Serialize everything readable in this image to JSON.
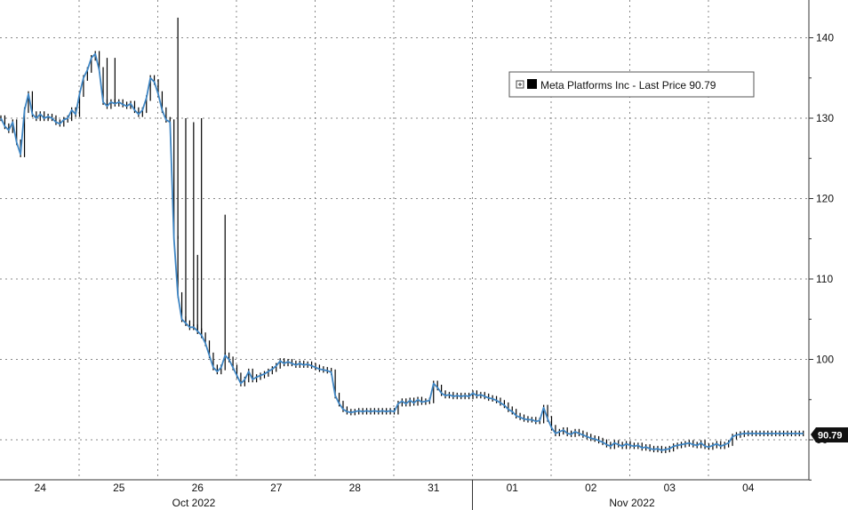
{
  "chart_data": {
    "type": "line",
    "title": "",
    "xlabel": "",
    "ylabel": "",
    "ylim": [
      85,
      142
    ],
    "y_ticks": [
      90,
      100,
      110,
      120,
      130,
      140
    ],
    "y_tick_labels": [
      "90",
      "100",
      "110",
      "120",
      "130",
      "140"
    ],
    "x_ticks": [
      "24",
      "25",
      "26",
      "27",
      "28",
      "31",
      "01",
      "02",
      "03",
      "04"
    ],
    "periods": [
      "Oct 2022",
      "Nov 2022"
    ],
    "grid": true,
    "legend_position": "top-right",
    "legend": {
      "label": "Meta Platforms Inc - Last Price 90.79",
      "expand_icon": "plus-box-icon"
    },
    "last_value_label": "90.79",
    "colors": {
      "line": "#3f86c4",
      "bars": "#000000",
      "grid": "#888888",
      "tag_bg": "#111111"
    },
    "series": [
      {
        "name": "Meta Platforms Inc - Last Price",
        "x": [
          0.0,
          0.05,
          0.1,
          0.15,
          0.2,
          0.25,
          0.3,
          0.35,
          0.4,
          0.45,
          0.5,
          0.55,
          0.6,
          0.65,
          0.7,
          0.75,
          0.8,
          0.85,
          0.9,
          0.95,
          1.0,
          1.05,
          1.1,
          1.15,
          1.2,
          1.25,
          1.3,
          1.35,
          1.4,
          1.45,
          1.5,
          1.55,
          1.6,
          1.65,
          1.7,
          1.75,
          1.8,
          1.85,
          1.9,
          1.95,
          2.0,
          2.05,
          2.1,
          2.15,
          2.2,
          2.25,
          2.3,
          2.35,
          2.4,
          2.45,
          2.5,
          2.55,
          2.6,
          2.65,
          2.7,
          2.75,
          2.8,
          2.85,
          2.9,
          2.95,
          3.0,
          3.05,
          3.1,
          3.15,
          3.2,
          3.25,
          3.3,
          3.35,
          3.4,
          3.45,
          3.5,
          3.55,
          3.6,
          3.65,
          3.7,
          3.75,
          3.8,
          3.85,
          3.9,
          3.95,
          4.0,
          4.05,
          4.1,
          4.15,
          4.2,
          4.25,
          4.3,
          4.35,
          4.4,
          4.45,
          4.5,
          4.55,
          4.6,
          4.65,
          4.7,
          4.75,
          4.8,
          4.85,
          4.9,
          4.95,
          5.0,
          5.05,
          5.1,
          5.15,
          5.2,
          5.25,
          5.3,
          5.35,
          5.4,
          5.45,
          5.5,
          5.55,
          5.6,
          5.65,
          5.7,
          5.75,
          5.8,
          5.85,
          5.9,
          5.95,
          6.0,
          6.05,
          6.1,
          6.15,
          6.2,
          6.25,
          6.3,
          6.35,
          6.4,
          6.45,
          6.5,
          6.55,
          6.6,
          6.65,
          6.7,
          6.75,
          6.8,
          6.85,
          6.9,
          6.95,
          7.0,
          7.05,
          7.1,
          7.15,
          7.2,
          7.25,
          7.3,
          7.35,
          7.4,
          7.45,
          7.5,
          7.55,
          7.6,
          7.65,
          7.7,
          7.75,
          7.8,
          7.85,
          7.9,
          7.95,
          8.0,
          8.05,
          8.1,
          8.15,
          8.2,
          8.25,
          8.3,
          8.35,
          8.4,
          8.45,
          8.5,
          8.55,
          8.6,
          8.65,
          8.7,
          8.75,
          8.8,
          8.85,
          8.9,
          8.95,
          9.0,
          9.05,
          9.1,
          9.15,
          9.2,
          9.25,
          9.3,
          9.35,
          9.4,
          9.45,
          9.5,
          9.55,
          9.6,
          9.65,
          9.7,
          9.75,
          9.8,
          9.85,
          9.9,
          9.95,
          10.0,
          10.05,
          10.1,
          10.15,
          10.2
        ],
        "values": [
          130,
          129,
          128.5,
          129.5,
          127,
          125.5,
          131,
          133,
          130.5,
          130,
          130.5,
          130,
          130.2,
          130,
          129.5,
          129.3,
          129.8,
          130,
          131,
          130.5,
          133,
          135,
          136,
          137.5,
          138,
          136,
          132,
          131.5,
          132,
          131.8,
          132,
          131.7,
          131.5,
          131.8,
          131,
          130.5,
          131,
          132.5,
          135,
          134.5,
          133,
          131,
          129.8,
          129.5,
          115,
          108,
          105,
          104.5,
          104,
          104,
          103.5,
          103,
          102,
          100.5,
          99,
          98.5,
          99,
          100.5,
          100,
          99,
          98,
          97,
          97.5,
          98.5,
          97.5,
          97.8,
          98,
          98.2,
          98.5,
          98.8,
          99.2,
          99.8,
          99.5,
          99.7,
          99.5,
          99.3,
          99.5,
          99.3,
          99.4,
          99.2,
          99,
          98.8,
          98.7,
          98.6,
          98.4,
          95.5,
          94.5,
          93.8,
          93.5,
          93.4,
          93.5,
          93.6,
          93.5,
          93.6,
          93.5,
          93.6,
          93.5,
          93.6,
          93.5,
          93.6,
          93.5,
          94.5,
          94.8,
          94.5,
          94.9,
          94.6,
          95,
          94.7,
          94.8,
          94.9,
          97,
          96.5,
          95.8,
          95.5,
          95.6,
          95.4,
          95.5,
          95.4,
          95.5,
          95.4,
          95.8,
          95.5,
          95.6,
          95.4,
          95.2,
          95.1,
          94.9,
          94.6,
          94.3,
          93.8,
          93.5,
          93,
          92.8,
          92.6,
          92.5,
          92.5,
          92.3,
          92.4,
          94,
          92.6,
          91.5,
          90.8,
          91,
          91.2,
          90.8,
          90.7,
          91,
          90.8,
          90.6,
          90.4,
          90.2,
          90.1,
          89.9,
          89.7,
          89.4,
          89.2,
          89.6,
          89.4,
          89.2,
          89.5,
          89.3,
          89.2,
          89.3,
          89,
          89.1,
          88.9,
          88.8,
          88.9,
          88.7,
          88.8,
          88.9,
          89.2,
          89.3,
          89.4,
          89.5,
          89.6,
          89.4,
          89.3,
          89.6,
          89.2,
          89.1,
          89.3,
          89.5,
          89.2,
          89.4,
          89.6,
          90.4,
          90.6,
          90.7,
          90.8,
          90.8,
          90.8,
          90.79,
          90.79,
          90.79,
          90.79,
          90.79,
          90.79,
          90.79,
          90.79,
          90.79,
          90.79,
          90.79,
          90.79,
          90.79
        ]
      }
    ],
    "spikes": [
      {
        "x": 1.35,
        "low": 131.5,
        "high": 137.5
      },
      {
        "x": 1.45,
        "low": 131.8,
        "high": 137.5
      },
      {
        "x": 2.25,
        "low": 115,
        "high": 142.5
      },
      {
        "x": 2.35,
        "low": 104.5,
        "high": 130
      },
      {
        "x": 2.45,
        "low": 104,
        "high": 129.5
      },
      {
        "x": 2.5,
        "low": 103.5,
        "high": 113
      },
      {
        "x": 2.55,
        "low": 103,
        "high": 130
      },
      {
        "x": 2.85,
        "low": 100.5,
        "high": 118
      }
    ]
  }
}
